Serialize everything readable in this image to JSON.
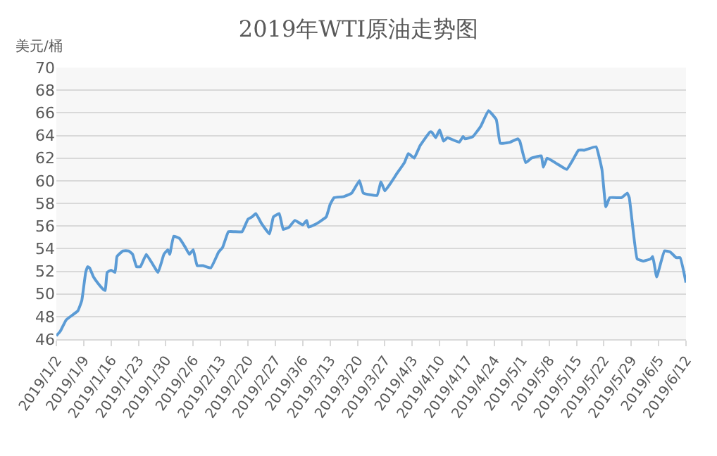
{
  "chart_data": {
    "type": "line",
    "title": "2019年WTI原油走势图",
    "ylabel": "美元/桶",
    "x": [
      "2019-01-02",
      "2019-01-03",
      "2019-01-04T12:00",
      "2019-01-06",
      "2019-01-07T12:00",
      "2019-01-08T12:00",
      "2019-01-09T12:00",
      "2019-01-10",
      "2019-01-10T12:00",
      "2019-01-11T12:00",
      "2019-01-12T12:00",
      "2019-01-14",
      "2019-01-14T12:00",
      "2019-01-15",
      "2019-01-16",
      "2019-01-17",
      "2019-01-17T12:00",
      "2019-01-19",
      "2019-01-20T12:00",
      "2019-01-21T12:00",
      "2019-01-22T12:00",
      "2019-01-23T12:00",
      "2019-01-25",
      "2019-01-28",
      "2019-01-29T12:00",
      "2019-01-30T12:00",
      "2019-01-31",
      "2019-02-01",
      "2019-02-02T12:00",
      "2019-02-04",
      "2019-02-05",
      "2019-02-06",
      "2019-02-07",
      "2019-02-08T12:00",
      "2019-02-10T12:00",
      "2019-02-12T12:00",
      "2019-02-13T12:00",
      "2019-02-15",
      "2019-02-16T12:00",
      "2019-02-18T12:00",
      "2019-02-20",
      "2019-02-21",
      "2019-02-22",
      "2019-02-23T12:00",
      "2019-02-25T12:00",
      "2019-02-26T12:00",
      "2019-02-28",
      "2019-03-01",
      "2019-03-02T12:00",
      "2019-03-04",
      "2019-03-06",
      "2019-03-07",
      "2019-03-07T12:00",
      "2019-03-09T12:00",
      "2019-03-12",
      "2019-03-13",
      "2019-03-14",
      "2019-03-16T12:00",
      "2019-03-18T12:00",
      "2019-03-20T12:00",
      "2019-03-21T12:00",
      "2019-03-25",
      "2019-03-26",
      "2019-03-27",
      "2019-03-28T12:00",
      "2019-03-30",
      "2019-04-01",
      "2019-04-02",
      "2019-04-03T12:00",
      "2019-04-05",
      "2019-04-07T12:00",
      "2019-04-08",
      "2019-04-09",
      "2019-04-10",
      "2019-04-11",
      "2019-04-12",
      "2019-04-15",
      "2019-04-16",
      "2019-04-16T12:00",
      "2019-04-18T12:00",
      "2019-04-20T12:00",
      "2019-04-22T12:00",
      "2019-04-24T12:00",
      "2019-04-25T12:00",
      "2019-04-28",
      "2019-04-30",
      "2019-04-30T12:00",
      "2019-05-02",
      "2019-05-03T12:00",
      "2019-05-06",
      "2019-05-06T12:00",
      "2019-05-07T12:00",
      "2019-05-10",
      "2019-05-12T12:00",
      "2019-05-14",
      "2019-05-15T12:00",
      "2019-05-17",
      "2019-05-20",
      "2019-05-21T12:00",
      "2019-05-22T12:00",
      "2019-05-23T12:00",
      "2019-05-26T12:00",
      "2019-05-28",
      "2019-05-28T12:00",
      "2019-05-30T12:00",
      "2019-06-01",
      "2019-06-03",
      "2019-06-03T12:00",
      "2019-06-04T12:00",
      "2019-06-06T12:00",
      "2019-06-08",
      "2019-06-09T12:00",
      "2019-06-10T12:00",
      "2019-06-12"
    ],
    "series": [
      {
        "color": "#5b9bd5",
        "values": [
          46.3,
          46.7,
          47.7,
          48.1,
          48.5,
          49.4,
          51.9,
          52.4,
          52.3,
          51.5,
          51.0,
          50.4,
          50.3,
          51.9,
          52.1,
          51.9,
          53.3,
          53.8,
          53.8,
          53.5,
          52.4,
          52.4,
          53.5,
          51.9,
          53.5,
          53.9,
          53.5,
          55.1,
          54.9,
          54.1,
          53.5,
          53.9,
          52.5,
          52.5,
          52.3,
          53.7,
          54.1,
          55.5,
          55.5,
          55.5,
          56.6,
          56.8,
          57.1,
          56.2,
          55.3,
          56.8,
          57.1,
          55.7,
          55.9,
          56.5,
          56.1,
          56.5,
          55.9,
          56.2,
          56.8,
          57.9,
          58.5,
          58.6,
          58.9,
          60.0,
          58.9,
          58.7,
          59.9,
          59.1,
          59.8,
          60.6,
          61.6,
          62.4,
          62.0,
          63.1,
          64.3,
          64.3,
          63.8,
          64.5,
          63.5,
          63.8,
          63.4,
          63.9,
          63.7,
          63.9,
          64.8,
          66.2,
          65.4,
          63.3,
          63.4,
          63.7,
          63.5,
          61.6,
          62.0,
          62.2,
          61.2,
          62.0,
          61.5,
          61.0,
          61.8,
          62.7,
          62.7,
          63.0,
          61.0,
          57.7,
          58.5,
          58.5,
          58.9,
          58.5,
          53.1,
          52.9,
          53.1,
          53.3,
          51.5,
          53.8,
          53.7,
          53.2,
          53.2,
          51.0
        ]
      }
    ],
    "xlim": [
      "2019-01-02",
      "2019-06-12"
    ],
    "xticks": [
      {
        "value": "2019-01-02",
        "label": "2019/1/2"
      },
      {
        "value": "2019-01-09",
        "label": "2019/1/9"
      },
      {
        "value": "2019-01-16",
        "label": "2019/1/16"
      },
      {
        "value": "2019-01-23",
        "label": "2019/1/23"
      },
      {
        "value": "2019-01-30",
        "label": "2019/1/30"
      },
      {
        "value": "2019-02-06",
        "label": "2019/2/6"
      },
      {
        "value": "2019-02-13",
        "label": "2019/2/13"
      },
      {
        "value": "2019-02-20",
        "label": "2019/2/20"
      },
      {
        "value": "2019-02-27",
        "label": "2019/2/27"
      },
      {
        "value": "2019-03-06",
        "label": "2019/3/6"
      },
      {
        "value": "2019-03-13",
        "label": "2019/3/13"
      },
      {
        "value": "2019-03-20",
        "label": "2019/3/20"
      },
      {
        "value": "2019-03-27",
        "label": "2019/3/27"
      },
      {
        "value": "2019-04-03",
        "label": "2019/4/3"
      },
      {
        "value": "2019-04-10",
        "label": "2019/4/10"
      },
      {
        "value": "2019-04-17",
        "label": "2019/4/17"
      },
      {
        "value": "2019-04-24",
        "label": "2019/4/24"
      },
      {
        "value": "2019-05-01",
        "label": "2019/5/1"
      },
      {
        "value": "2019-05-08",
        "label": "2019/5/8"
      },
      {
        "value": "2019-05-15",
        "label": "2019/5/15"
      },
      {
        "value": "2019-05-22",
        "label": "2019/5/22"
      },
      {
        "value": "2019-05-29",
        "label": "2019/5/29"
      },
      {
        "value": "2019-06-05",
        "label": "2019/6/5"
      },
      {
        "value": "2019-06-12",
        "label": "2019/6/12"
      }
    ],
    "ylim": [
      46,
      70
    ],
    "yticks": [
      46,
      48,
      50,
      52,
      54,
      56,
      58,
      60,
      62,
      64,
      66,
      68,
      70
    ],
    "grid": "y",
    "marker": "none",
    "line_style": "solid"
  }
}
